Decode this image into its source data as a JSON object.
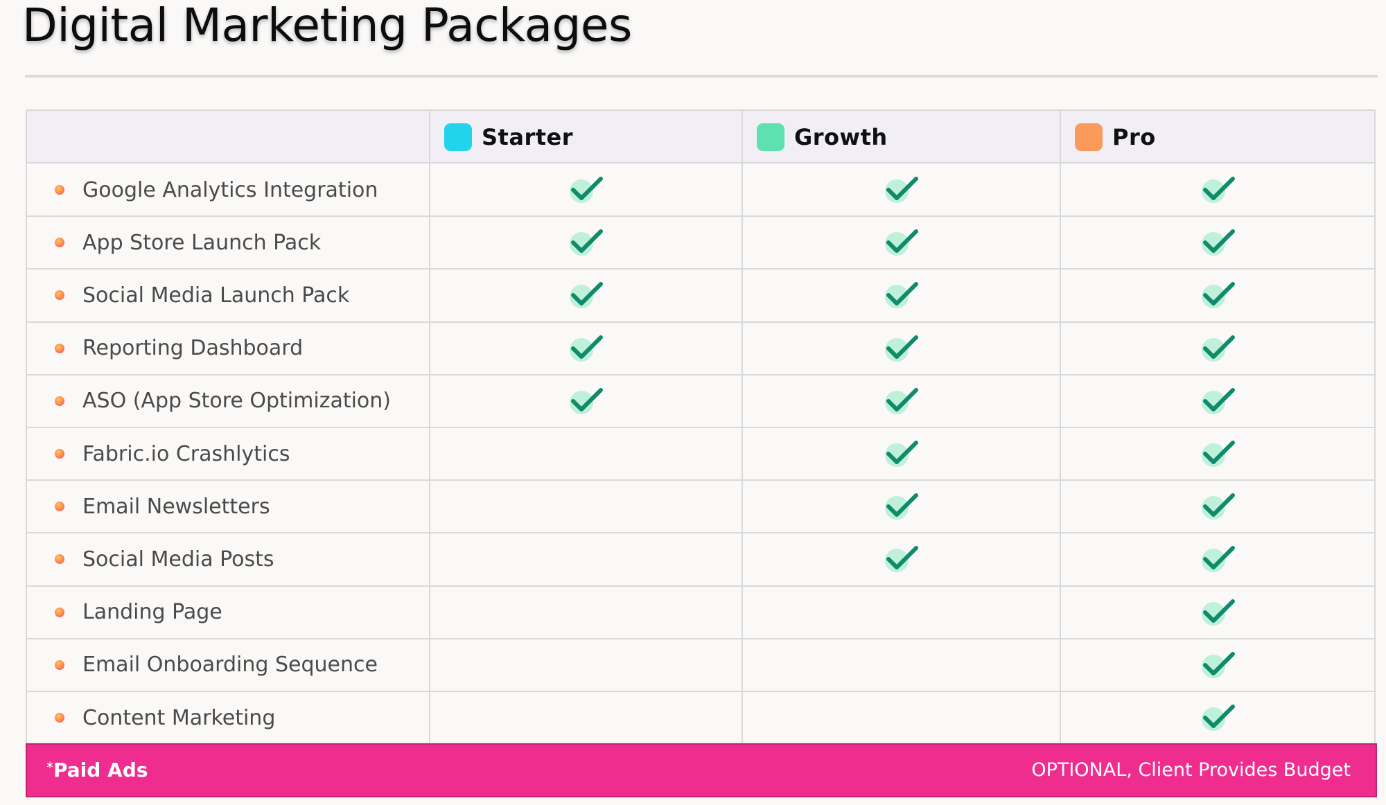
{
  "title": "Digital Marketing Packages",
  "plans": [
    {
      "name": "Starter",
      "color": "#22d3ee"
    },
    {
      "name": "Growth",
      "color": "#5fe0b0"
    },
    {
      "name": "Pro",
      "color": "#fb9a5a"
    }
  ],
  "check_color": "#0f8a6a",
  "features": [
    {
      "label": "Google Analytics Integration",
      "included": [
        true,
        true,
        true
      ]
    },
    {
      "label": "App Store Launch Pack",
      "included": [
        true,
        true,
        true
      ]
    },
    {
      "label": "Social Media Launch Pack",
      "included": [
        true,
        true,
        true
      ]
    },
    {
      "label": "Reporting Dashboard",
      "included": [
        true,
        true,
        true
      ]
    },
    {
      "label": "ASO (App Store Optimization)",
      "included": [
        true,
        true,
        true
      ]
    },
    {
      "label": "Fabric.io Crashlytics",
      "included": [
        false,
        true,
        true
      ]
    },
    {
      "label": "Email Newsletters",
      "included": [
        false,
        true,
        true
      ]
    },
    {
      "label": "Social Media Posts",
      "included": [
        false,
        true,
        true
      ]
    },
    {
      "label": "Landing Page",
      "included": [
        false,
        false,
        true
      ]
    },
    {
      "label": "Email Onboarding Sequence",
      "included": [
        false,
        false,
        true
      ]
    },
    {
      "label": "Content Marketing",
      "included": [
        false,
        false,
        true
      ]
    }
  ],
  "footer": {
    "asterisk": "*",
    "label": "Paid Ads",
    "note": "OPTIONAL, Client Provides Budget",
    "color": "#ef2d8f"
  }
}
